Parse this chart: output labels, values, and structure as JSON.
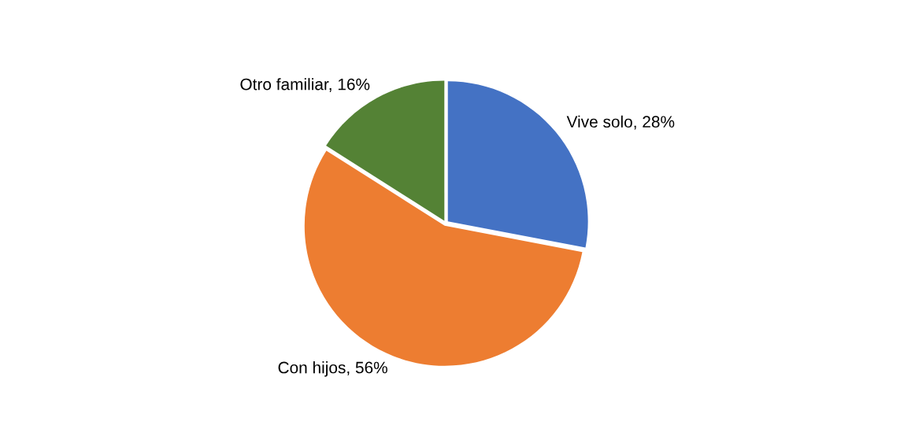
{
  "chart_data": {
    "type": "pie",
    "categories": [
      "Vive solo, 28%",
      "Con hijos, 56%",
      "Otro familiar, 16%"
    ],
    "values": [
      28,
      56,
      16
    ],
    "colors": [
      "#4472c4",
      "#ed7d31",
      "#548235"
    ]
  }
}
